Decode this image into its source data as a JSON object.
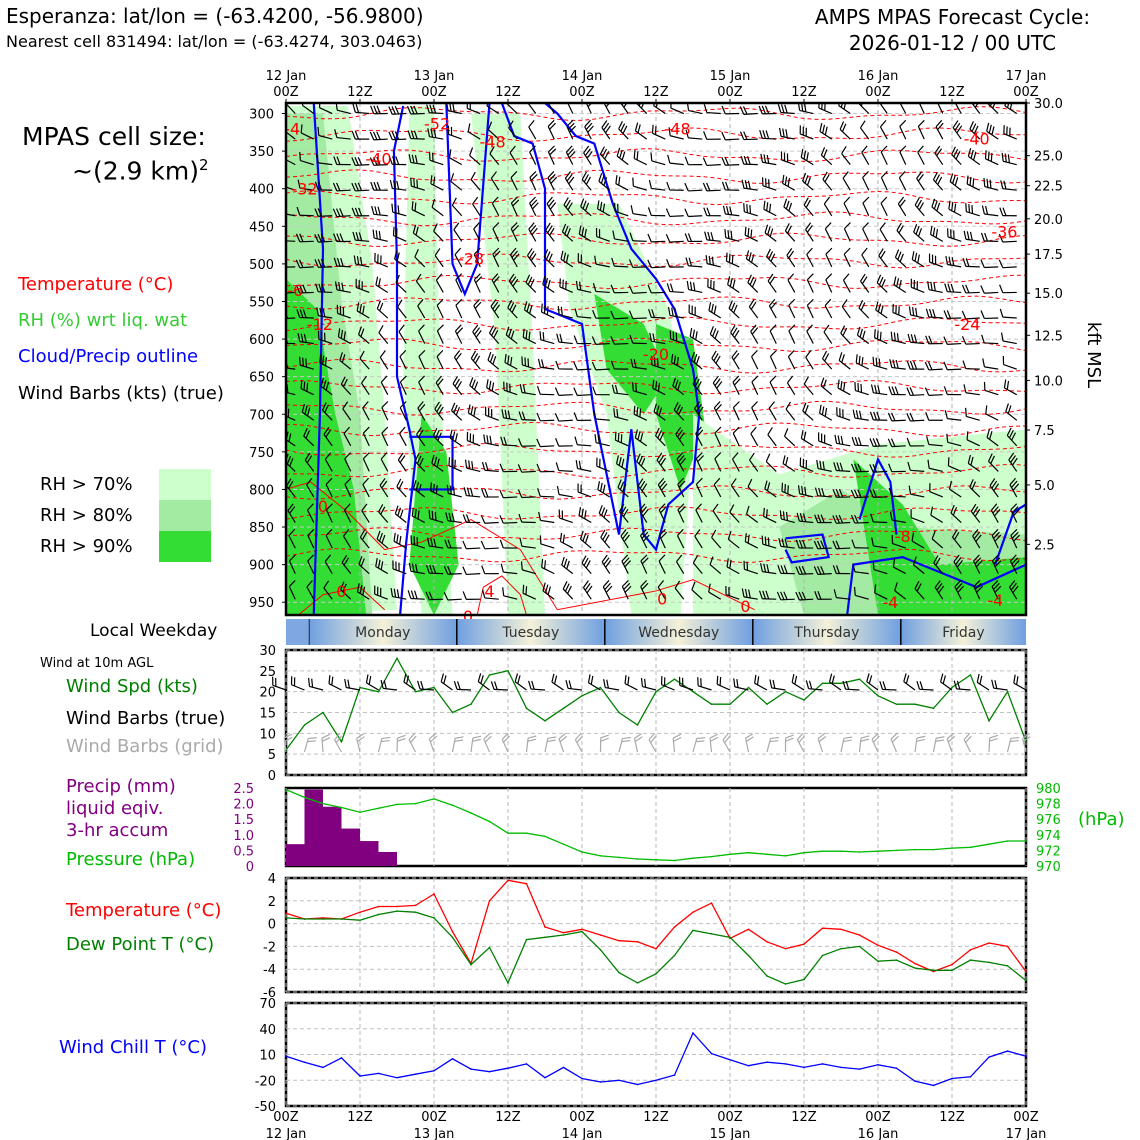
{
  "header": {
    "location": "Esperanza: lat/lon = (-63.4200, -56.9800)",
    "nearest_cell": "Nearest cell 831494: lat/lon = (-63.4274, 303.0463)",
    "cycle_line1": "AMPS MPAS Forecast Cycle:",
    "cycle_line2": "2026-01-12 / 00 UTC",
    "cell_size_line1": "MPAS cell size:",
    "cell_size_line2": "~(2.9 km)",
    "cell_size_sup": "2"
  },
  "legend": {
    "temperature": "Temperature (°C)",
    "rh": "RH (%) wrt liq. wat",
    "cloud": "Cloud/Precip outline",
    "wind": "Wind Barbs (kts) (true)",
    "rh70": "RH > 70%",
    "rh80": "RH > 80%",
    "rh90": "RH > 90%"
  },
  "colors": {
    "temperature": "#ff0000",
    "rh_label": "#33cc33",
    "cloud": "#0000ff",
    "rh70": "#ccffcc",
    "rh80": "#a3eba3",
    "rh90": "#33dd33",
    "precip": "#800080",
    "pressure": "#00bb00",
    "wind_speed": "#008000",
    "dewpoint": "#008000",
    "windchill": "#0000ff",
    "wind_grid": "#aaaaaa"
  },
  "side_labels": {
    "weekday": "Local Weekday",
    "wind10m": "Wind at 10m AGL",
    "wind_spd": "Wind Spd (kts)",
    "wind_barbs_true": "Wind Barbs (true)",
    "wind_barbs_grid": "Wind Barbs (grid)",
    "precip1": "Precip (mm)",
    "precip2": "liquid eqiv.",
    "precip3": "3-hr accum",
    "pressure": "Pressure (hPa)",
    "temperature": "Temperature (°C)",
    "dewpoint": "Dew Point T (°C)",
    "windchill": "Wind Chill T (°C)",
    "hpa_unit": "(hPa)",
    "kft": "kft MSL"
  },
  "chart_data": [
    {
      "type": "contour",
      "name": "time-height cross-section",
      "x_time_hours": [
        0,
        120
      ],
      "top_ticks": [
        {
          "h": 0,
          "line1": "12 Jan",
          "line2": "00Z"
        },
        {
          "h": 12,
          "line1": "",
          "line2": "12Z"
        },
        {
          "h": 24,
          "line1": "13 Jan",
          "line2": "00Z"
        },
        {
          "h": 36,
          "line1": "",
          "line2": "12Z"
        },
        {
          "h": 48,
          "line1": "14 Jan",
          "line2": "00Z"
        },
        {
          "h": 60,
          "line1": "",
          "line2": "12Z"
        },
        {
          "h": 72,
          "line1": "15 Jan",
          "line2": "00Z"
        },
        {
          "h": 84,
          "line1": "",
          "line2": "12Z"
        },
        {
          "h": 96,
          "line1": "16 Jan",
          "line2": "00Z"
        },
        {
          "h": 108,
          "line1": "",
          "line2": "12Z"
        },
        {
          "h": 120,
          "line1": "17 Jan",
          "line2": "00Z"
        }
      ],
      "pressure_ticks": [
        "300",
        "350",
        "400",
        "450",
        "500",
        "550",
        "600",
        "650",
        "700",
        "750",
        "800",
        "850",
        "900",
        "950"
      ],
      "ylim_hpa": [
        967,
        286
      ],
      "kft_ticks": [
        {
          "p": 286,
          "label": "30.0"
        },
        {
          "p": 356,
          "label": "25.0"
        },
        {
          "p": 396,
          "label": "22.5"
        },
        {
          "p": 440,
          "label": "20.0"
        },
        {
          "p": 487,
          "label": "17.5"
        },
        {
          "p": 539,
          "label": "15.0"
        },
        {
          "p": 595,
          "label": "12.5"
        },
        {
          "p": 655,
          "label": "10.0"
        },
        {
          "p": 721,
          "label": "7.5"
        },
        {
          "p": 794,
          "label": "5.0"
        },
        {
          "p": 873,
          "label": "2.5"
        }
      ],
      "temperature_labels": [
        {
          "h": 1,
          "p": 320,
          "label": "-4"
        },
        {
          "h": 24.5,
          "p": 313,
          "label": "-52"
        },
        {
          "h": 63.5,
          "p": 320,
          "label": "-48"
        },
        {
          "h": 33.5,
          "p": 337,
          "label": "-48"
        },
        {
          "h": 15,
          "p": 360,
          "label": "-40"
        },
        {
          "h": 112,
          "p": 333,
          "label": "-40"
        },
        {
          "h": 3,
          "p": 400,
          "label": "-32"
        },
        {
          "h": 116.5,
          "p": 457,
          "label": "-36"
        },
        {
          "h": 30,
          "p": 493,
          "label": "-28"
        },
        {
          "h": 1.5,
          "p": 535,
          "label": "-6"
        },
        {
          "h": 5.5,
          "p": 580,
          "label": "-12"
        },
        {
          "h": 60,
          "p": 620,
          "label": "-20"
        },
        {
          "h": 110.5,
          "p": 580,
          "label": "-24"
        },
        {
          "h": 6,
          "p": 822,
          "label": "0"
        },
        {
          "h": 9,
          "p": 935,
          "label": "0"
        },
        {
          "h": 33,
          "p": 935,
          "label": "4"
        },
        {
          "h": 29.5,
          "p": 968,
          "label": "0"
        },
        {
          "h": 61,
          "p": 945,
          "label": "0"
        },
        {
          "h": 74.5,
          "p": 955,
          "label": "0"
        },
        {
          "h": 100,
          "p": 862,
          "label": "-8"
        },
        {
          "h": 98,
          "p": 950,
          "label": "-4"
        },
        {
          "h": 115,
          "p": 947,
          "label": "-4"
        }
      ],
      "weekdays": [
        "Monday",
        "Tuesday",
        "Wednesday",
        "Thursday",
        "Friday"
      ],
      "weekday_boundaries_h": [
        3.7,
        27.7,
        51.7,
        75.7,
        99.7
      ]
    },
    {
      "type": "line",
      "name": "wind speed 10m",
      "ylim": [
        0,
        30
      ],
      "yticks": [
        "0",
        "5",
        "10",
        "15",
        "20",
        "25",
        "30"
      ],
      "x": [
        0,
        3,
        6,
        9,
        12,
        15,
        18,
        21,
        24,
        27,
        30,
        33,
        36,
        39,
        42,
        45,
        48,
        51,
        54,
        57,
        60,
        63,
        66,
        69,
        72,
        75,
        78,
        81,
        84,
        87,
        90,
        93,
        96,
        99,
        102,
        105,
        108,
        111,
        114,
        117,
        120
      ],
      "values": [
        6,
        12,
        15,
        8,
        21,
        20,
        28,
        20,
        21,
        15,
        17,
        24,
        25,
        16,
        13,
        16,
        19,
        21,
        15,
        12,
        20,
        23,
        20,
        17,
        17,
        21,
        17,
        20,
        18,
        22,
        22,
        23,
        19,
        17,
        17,
        16,
        21,
        24,
        13,
        20,
        8
      ]
    },
    {
      "type": "bar+line",
      "name": "precipitation and pressure",
      "precip_ylim": [
        0,
        2.5
      ],
      "precip_yticks": [
        "0",
        "0.5",
        "1.0",
        "1.5",
        "2.0",
        "2.5"
      ],
      "precip_bars": [
        {
          "start": 0,
          "end": 3,
          "value": 0.7
        },
        {
          "start": 3,
          "end": 6,
          "value": 2.45
        },
        {
          "start": 6,
          "end": 9,
          "value": 1.9
        },
        {
          "start": 9,
          "end": 12,
          "value": 1.2
        },
        {
          "start": 12,
          "end": 15,
          "value": 0.8
        },
        {
          "start": 15,
          "end": 18,
          "value": 0.45
        }
      ],
      "pressure_ylim": [
        970,
        980
      ],
      "pressure_yticks": [
        "970",
        "972",
        "974",
        "976",
        "978",
        "980"
      ],
      "pressure_x": [
        0,
        3,
        6,
        9,
        12,
        15,
        18,
        21,
        24,
        27,
        30,
        33,
        36,
        39,
        42,
        45,
        48,
        51,
        54,
        57,
        60,
        63,
        66,
        69,
        72,
        75,
        78,
        81,
        84,
        87,
        90,
        93,
        96,
        99,
        102,
        105,
        108,
        111,
        114,
        117,
        120
      ],
      "pressure": [
        979.8,
        978.8,
        978.0,
        977.5,
        976.9,
        977.4,
        977.9,
        978.0,
        978.6,
        977.8,
        976.8,
        975.7,
        974.2,
        974.2,
        973.8,
        972.8,
        971.8,
        971.3,
        971.1,
        970.9,
        970.8,
        970.7,
        971.0,
        971.2,
        971.5,
        971.7,
        971.5,
        971.3,
        971.7,
        971.9,
        971.9,
        971.8,
        971.9,
        972.0,
        972.1,
        972.1,
        972.3,
        972.4,
        972.8,
        973.2,
        973.2
      ]
    },
    {
      "type": "line",
      "name": "temperature and dew point",
      "ylim": [
        -6,
        4
      ],
      "yticks": [
        "-6",
        "-4",
        "-2",
        "0",
        "2",
        "4"
      ],
      "x": [
        0,
        3,
        6,
        9,
        12,
        15,
        18,
        21,
        24,
        27,
        30,
        33,
        36,
        39,
        42,
        45,
        48,
        51,
        54,
        57,
        60,
        63,
        66,
        69,
        72,
        75,
        78,
        81,
        84,
        87,
        90,
        93,
        96,
        99,
        102,
        105,
        108,
        111,
        114,
        117,
        120
      ],
      "series": [
        {
          "name": "Temperature",
          "values": [
            0.9,
            0.4,
            0.5,
            0.4,
            1.0,
            1.5,
            1.5,
            1.6,
            2.6,
            -0.7,
            -3.5,
            2.0,
            3.8,
            3.5,
            -0.3,
            -0.8,
            -0.5,
            -1.0,
            -1.5,
            -1.6,
            -2.2,
            -0.3,
            1.0,
            1.8,
            -1.3,
            -0.5,
            -1.6,
            -2.2,
            -1.8,
            -0.4,
            -0.5,
            -1.0,
            -1.9,
            -2.5,
            -3.5,
            -4.2,
            -3.6,
            -2.3,
            -1.7,
            -2.0,
            -4.2
          ]
        },
        {
          "name": "Dew Point",
          "values": [
            0.5,
            0.4,
            0.4,
            0.4,
            0.3,
            0.8,
            1.1,
            1.0,
            0.5,
            -1.2,
            -3.6,
            -2.1,
            -5.2,
            -1.4,
            -1.2,
            -1.0,
            -0.7,
            -2.3,
            -4.3,
            -5.2,
            -4.4,
            -2.8,
            -0.6,
            -0.9,
            -1.2,
            -2.8,
            -4.6,
            -5.3,
            -4.9,
            -2.8,
            -2.2,
            -2.0,
            -3.3,
            -3.2,
            -3.9,
            -4.1,
            -4.1,
            -3.2,
            -3.4,
            -3.7,
            -5.0
          ]
        }
      ]
    },
    {
      "type": "line",
      "name": "wind chill",
      "ylim": [
        -50,
        70
      ],
      "yticks": [
        "-50",
        "-20",
        "10",
        "40",
        "70"
      ],
      "x": [
        0,
        3,
        6,
        9,
        12,
        15,
        18,
        21,
        24,
        27,
        30,
        33,
        36,
        39,
        42,
        45,
        48,
        51,
        54,
        57,
        60,
        63,
        66,
        69,
        72,
        75,
        78,
        81,
        84,
        87,
        90,
        93,
        96,
        99,
        102,
        105,
        108,
        111,
        114,
        117,
        120
      ],
      "values": [
        8,
        1,
        -5,
        6,
        -15,
        -12,
        -17,
        -13,
        -9,
        5,
        -7,
        -10,
        -6,
        -1,
        -17,
        -5,
        -18,
        -22,
        -20,
        -25,
        -20,
        -14,
        35,
        11,
        4,
        -3,
        1,
        -1,
        -5,
        -1,
        -5,
        -7,
        -2,
        -6,
        -21,
        -26,
        -18,
        -16,
        7,
        14,
        8
      ]
    }
  ]
}
